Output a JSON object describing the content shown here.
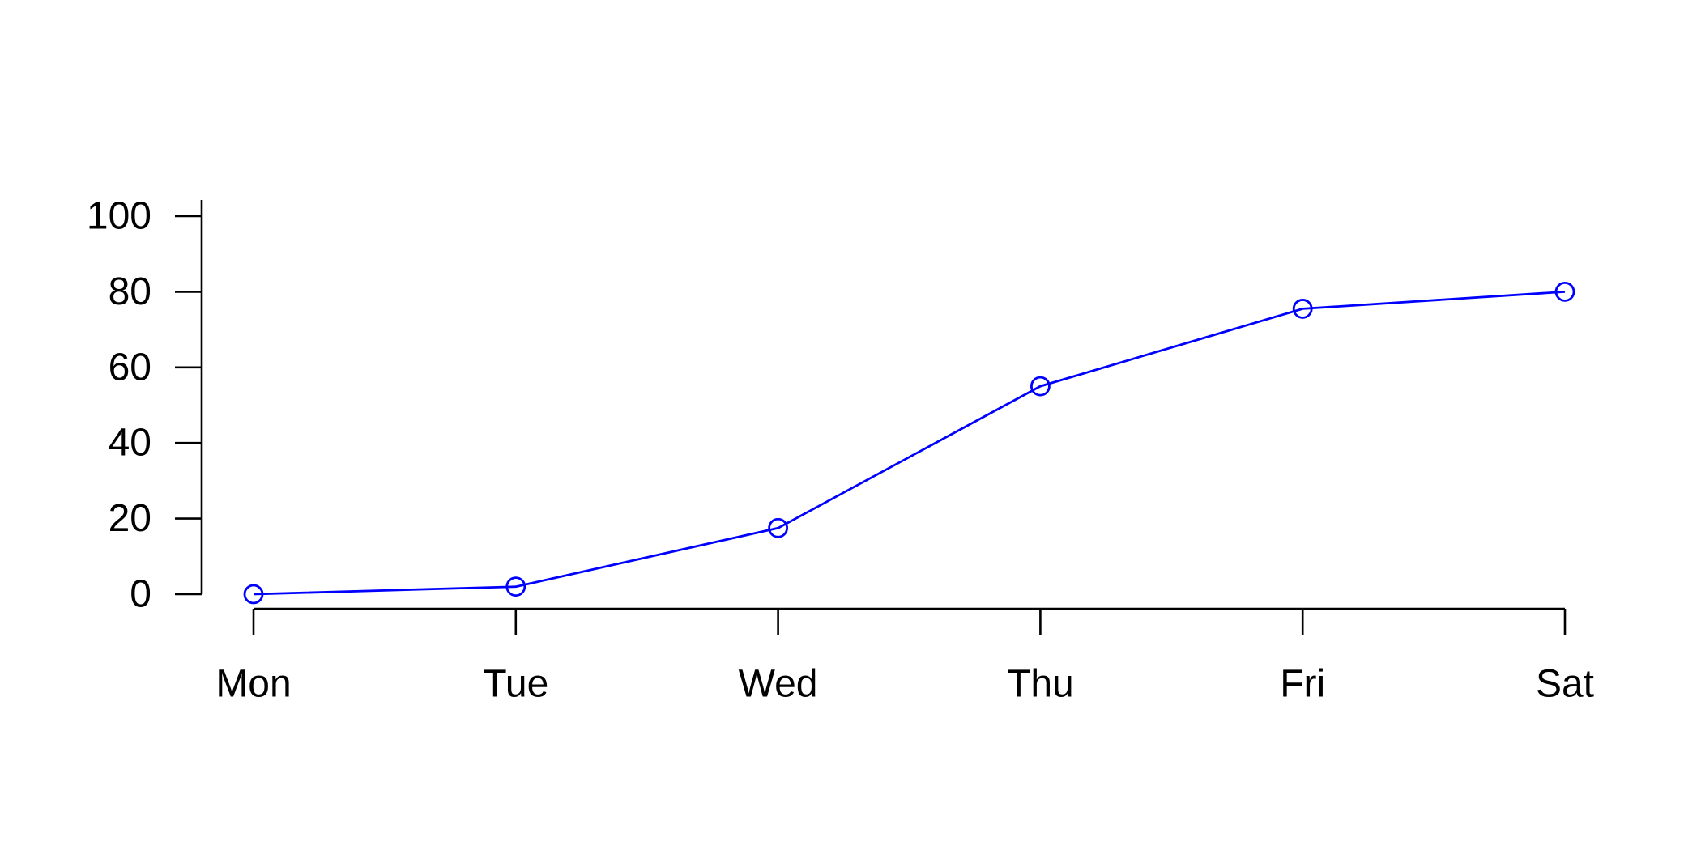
{
  "chart_data": {
    "type": "line",
    "categories": [
      "Mon",
      "Tue",
      "Wed",
      "Thu",
      "Fri",
      "Sat"
    ],
    "series": [
      {
        "values": [
          0,
          2,
          17.5,
          55,
          75.5,
          80
        ],
        "color": "#0000ff",
        "marker": "open-circle"
      }
    ],
    "ylim": [
      0,
      100
    ],
    "yticks": [
      0,
      20,
      40,
      60,
      80,
      100
    ],
    "ytick_labels": [
      "0",
      "20",
      "40",
      "60",
      "80",
      "100"
    ],
    "grid": false,
    "legend": "none"
  }
}
